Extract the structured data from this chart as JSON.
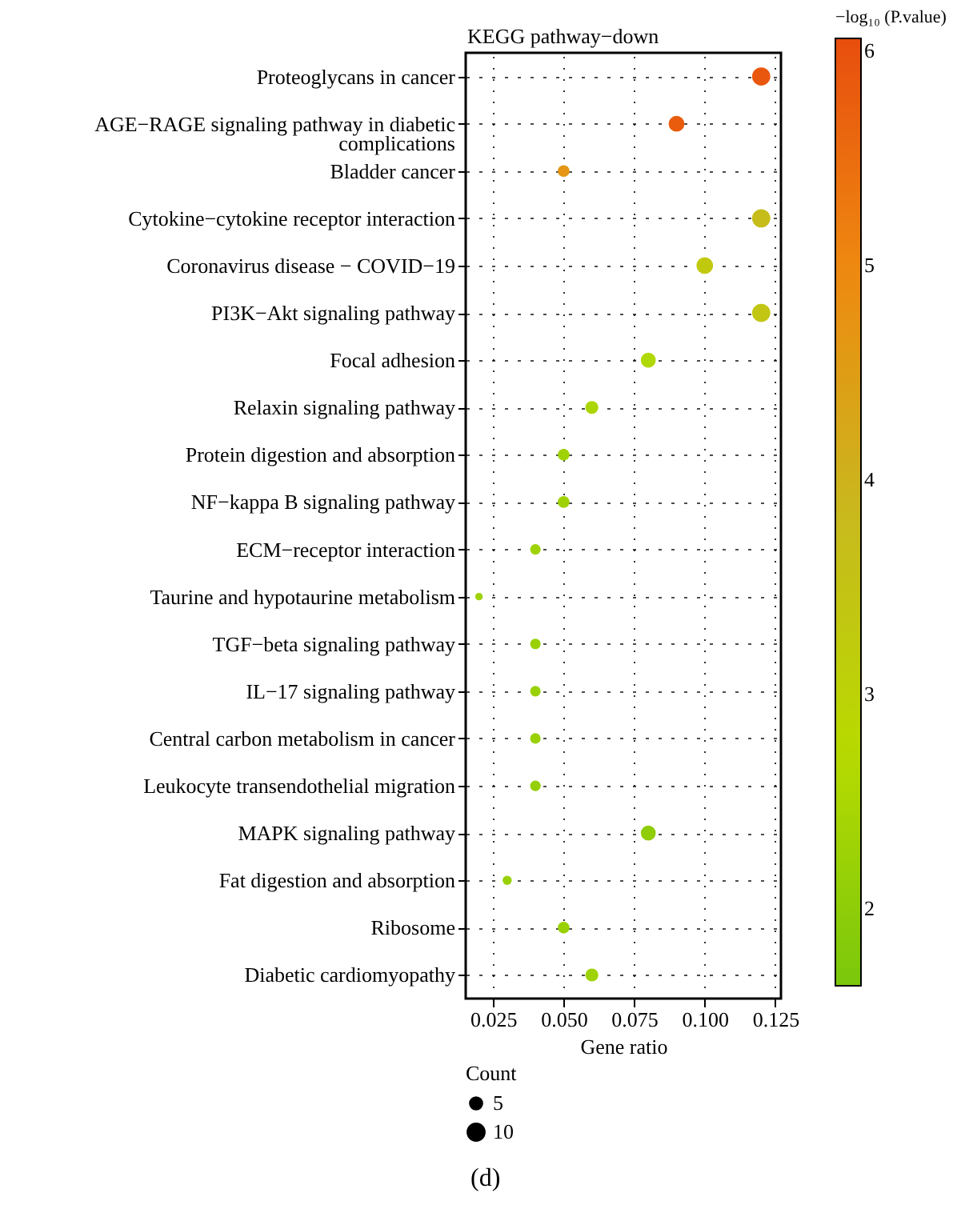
{
  "chart_data": {
    "type": "bubble",
    "title": "KEGG pathway−down",
    "xlabel": "Gene ratio",
    "clabel": "−log₁₀ (P.value)",
    "legend_title": "Count",
    "categories": [
      "Proteoglycans in cancer",
      "AGE−RAGE signaling pathway in diabetic complications",
      "Bladder cancer",
      "Cytokine−cytokine receptor interaction",
      "Coronavirus disease − COVID−19",
      "PI3K−Akt signaling pathway",
      "Focal adhesion",
      "Relaxin signaling pathway",
      "Protein digestion and absorption",
      "NF−kappa B signaling pathway",
      "ECM−receptor interaction",
      "Taurine and hypotaurine metabolism",
      "TGF−beta signaling pathway",
      "IL−17 signaling pathway",
      "Central carbon metabolism in cancer",
      "Leukocyte transendothelial migration",
      "MAPK signaling pathway",
      "Fat digestion and absorption",
      "Ribosome",
      "Diabetic cardiomyopathy"
    ],
    "values": [
      0.12,
      0.09,
      0.05,
      0.12,
      0.1,
      0.12,
      0.08,
      0.06,
      0.05,
      0.05,
      0.04,
      0.02,
      0.04,
      0.04,
      0.04,
      0.04,
      0.08,
      0.03,
      0.05,
      0.06
    ],
    "sizes": [
      12,
      9,
      5,
      12,
      10,
      12,
      8,
      6,
      5,
      5,
      4,
      2,
      4,
      4,
      4,
      4,
      8,
      3,
      5,
      6
    ],
    "size_legend": [
      5,
      10
    ],
    "cvalues": [
      5.9,
      5.8,
      4.7,
      3.7,
      3.3,
      3.4,
      2.6,
      2.5,
      2.3,
      2.3,
      2.3,
      2.3,
      2.2,
      2.2,
      2.2,
      2.1,
      2.0,
      2.2,
      2.2,
      2.3
    ],
    "clim": [
      1.64,
      6.06
    ],
    "cticks": [
      2,
      3,
      4,
      5,
      6
    ],
    "xlim": [
      0.0153,
      0.127
    ],
    "xticks": [
      0.025,
      {
        "value": 0.05,
        "label": "0.050"
      },
      0.075,
      {
        "value": 0.1,
        "label": "0.100"
      },
      0.125
    ],
    "grid": true,
    "orientation": "horizontal",
    "annotations": [
      "(d)"
    ]
  }
}
